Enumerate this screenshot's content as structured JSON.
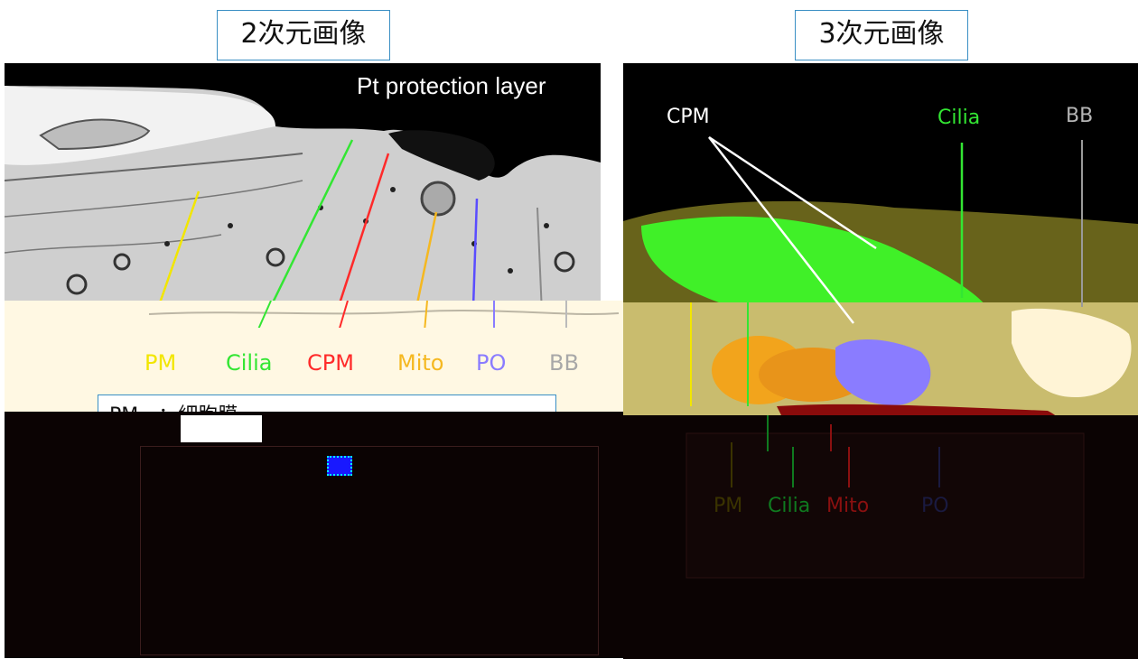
{
  "headings": {
    "left": "2次元画像",
    "right": "3次元画像"
  },
  "em_image": {
    "caption": "Pt protection layer",
    "labels": [
      {
        "key": "pm",
        "text": "PM",
        "color": "#f2e600"
      },
      {
        "key": "cilia",
        "text": "Cilia",
        "color": "#33e633"
      },
      {
        "key": "cpm",
        "text": "CPM",
        "color": "#ff2a2a"
      },
      {
        "key": "mito",
        "text": "Mito",
        "color": "#f5b820"
      },
      {
        "key": "po",
        "text": "PO",
        "color": "#8a7cff"
      },
      {
        "key": "bb",
        "text": "BB",
        "color": "#a8a8a8"
      }
    ]
  },
  "render_3d": {
    "top_labels": [
      {
        "key": "cpm",
        "text": "CPM",
        "color": "#ffffff"
      },
      {
        "key": "cilia",
        "text": "Cilia",
        "color": "#33e633"
      },
      {
        "key": "bb",
        "text": "BB",
        "color": "#b5b5b5"
      }
    ],
    "bottom_labels": [
      {
        "key": "pm",
        "text": "PM",
        "color": "#3a3300"
      },
      {
        "key": "cilia",
        "text": "Cilia",
        "color": "#0f7a1f"
      },
      {
        "key": "mito",
        "text": "Mito",
        "color": "#8a1010"
      },
      {
        "key": "po",
        "text": "PO",
        "color": "#1a1a40"
      }
    ]
  },
  "legend": {
    "first_row": "PM　：細胞膜"
  },
  "colors": {
    "frame_border": "#3a8fc4",
    "cream": "#fff8e3",
    "dark_overlay": "#0b0303"
  }
}
